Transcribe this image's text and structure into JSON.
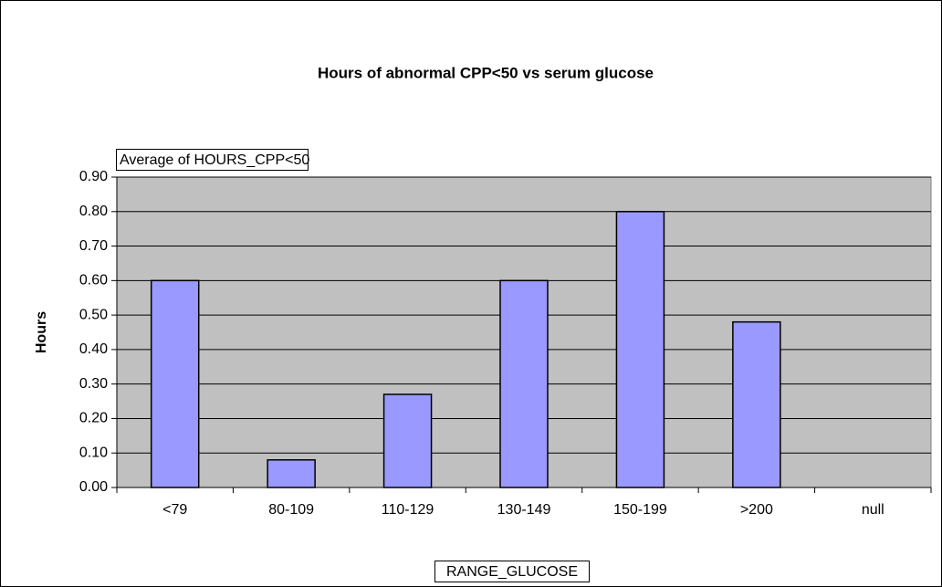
{
  "chart_data": {
    "type": "bar",
    "title": "Hours of abnormal CPP<50 vs serum glucose",
    "data_field": "Average of HOURS_CPP<50",
    "y_label": "Hours",
    "x_label": "RANGE_GLUCOSE",
    "categories": [
      "<79",
      "80-109",
      "110-129",
      "130-149",
      "150-199",
      ">200",
      "null"
    ],
    "values": [
      0.6,
      0.08,
      0.27,
      0.6,
      0.8,
      0.48,
      null
    ],
    "color": "#9999ff",
    "plot_background": "#c0c0c0",
    "ylim": [
      0,
      0.9
    ],
    "yticks": [
      {
        "value": 0,
        "label": "0.00"
      },
      {
        "value": 0.1,
        "label": "0.10"
      },
      {
        "value": 0.2,
        "label": "0.20"
      },
      {
        "value": 0.3,
        "label": "0.30"
      },
      {
        "value": 0.4,
        "label": "0.40"
      },
      {
        "value": 0.5,
        "label": "0.50"
      },
      {
        "value": 0.6,
        "label": "0.60"
      },
      {
        "value": 0.7,
        "label": "0.70"
      },
      {
        "value": 0.8,
        "label": "0.80"
      },
      {
        "value": 0.9,
        "label": "0.90"
      }
    ],
    "grid": true
  }
}
